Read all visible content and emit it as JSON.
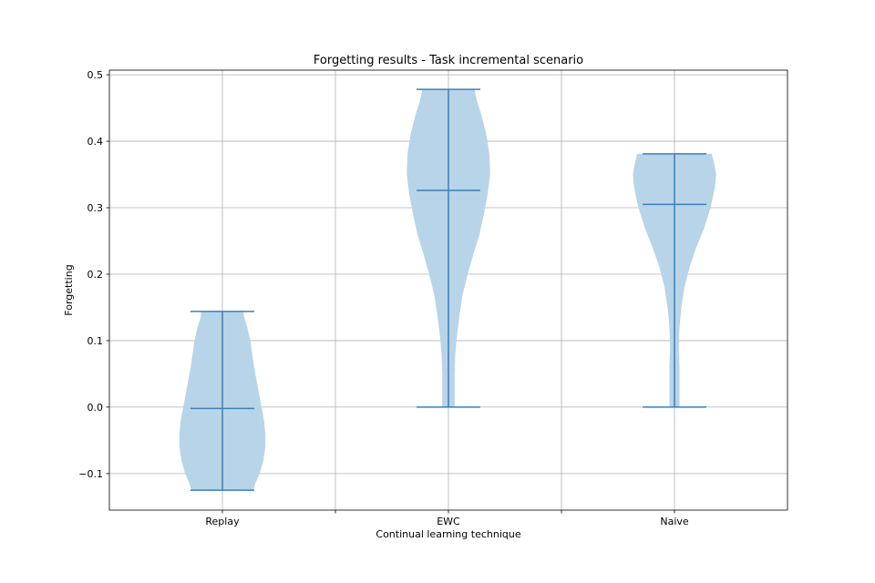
{
  "chart_data": {
    "type": "violin",
    "title": "Forgetting results - Task incremental scenario",
    "xlabel": "Continual learning technique",
    "ylabel": "Forgetting",
    "categories": [
      "Replay",
      "EWC",
      "Naive"
    ],
    "ylim": [
      -0.155,
      0.507
    ],
    "y_ticks": [
      -0.1,
      0.0,
      0.1,
      0.2,
      0.3,
      0.4,
      0.5
    ],
    "y_tick_labels": [
      "−0.1",
      "0.0",
      "0.1",
      "0.2",
      "0.3",
      "0.4",
      "0.5"
    ],
    "grid": true,
    "colors": {
      "violin_fill": "#b8d4e8",
      "violin_lines": "#3b7fb8",
      "grid": "#b0b0b0",
      "axes": "#000000"
    },
    "violins": [
      {
        "category": "Replay",
        "min": -0.125,
        "median": -0.002,
        "max": 0.144,
        "density": [
          [
            -0.125,
            0.5
          ],
          [
            -0.115,
            0.53
          ],
          [
            -0.1,
            0.6
          ],
          [
            -0.08,
            0.66
          ],
          [
            -0.06,
            0.69
          ],
          [
            -0.04,
            0.69
          ],
          [
            -0.02,
            0.67
          ],
          [
            0.0,
            0.63
          ],
          [
            0.02,
            0.59
          ],
          [
            0.04,
            0.55
          ],
          [
            0.06,
            0.51
          ],
          [
            0.08,
            0.48
          ],
          [
            0.1,
            0.45
          ],
          [
            0.12,
            0.4
          ],
          [
            0.135,
            0.35
          ],
          [
            0.144,
            0.34
          ]
        ]
      },
      {
        "category": "EWC",
        "min": 0.0,
        "median": 0.326,
        "max": 0.478,
        "density": [
          [
            0.0,
            0.1
          ],
          [
            0.02,
            0.1
          ],
          [
            0.05,
            0.1
          ],
          [
            0.08,
            0.11
          ],
          [
            0.11,
            0.14
          ],
          [
            0.14,
            0.18
          ],
          [
            0.17,
            0.23
          ],
          [
            0.2,
            0.31
          ],
          [
            0.23,
            0.4
          ],
          [
            0.26,
            0.5
          ],
          [
            0.29,
            0.57
          ],
          [
            0.32,
            0.63
          ],
          [
            0.35,
            0.67
          ],
          [
            0.38,
            0.66
          ],
          [
            0.41,
            0.61
          ],
          [
            0.44,
            0.53
          ],
          [
            0.46,
            0.46
          ],
          [
            0.478,
            0.42
          ]
        ]
      },
      {
        "category": "Naive",
        "min": 0.0,
        "median": 0.305,
        "max": 0.381,
        "density": [
          [
            0.0,
            0.08
          ],
          [
            0.03,
            0.08
          ],
          [
            0.06,
            0.08
          ],
          [
            0.09,
            0.07
          ],
          [
            0.12,
            0.08
          ],
          [
            0.15,
            0.11
          ],
          [
            0.18,
            0.16
          ],
          [
            0.21,
            0.24
          ],
          [
            0.24,
            0.35
          ],
          [
            0.27,
            0.48
          ],
          [
            0.3,
            0.58
          ],
          [
            0.33,
            0.65
          ],
          [
            0.35,
            0.67
          ],
          [
            0.37,
            0.63
          ],
          [
            0.381,
            0.6
          ]
        ]
      }
    ]
  }
}
